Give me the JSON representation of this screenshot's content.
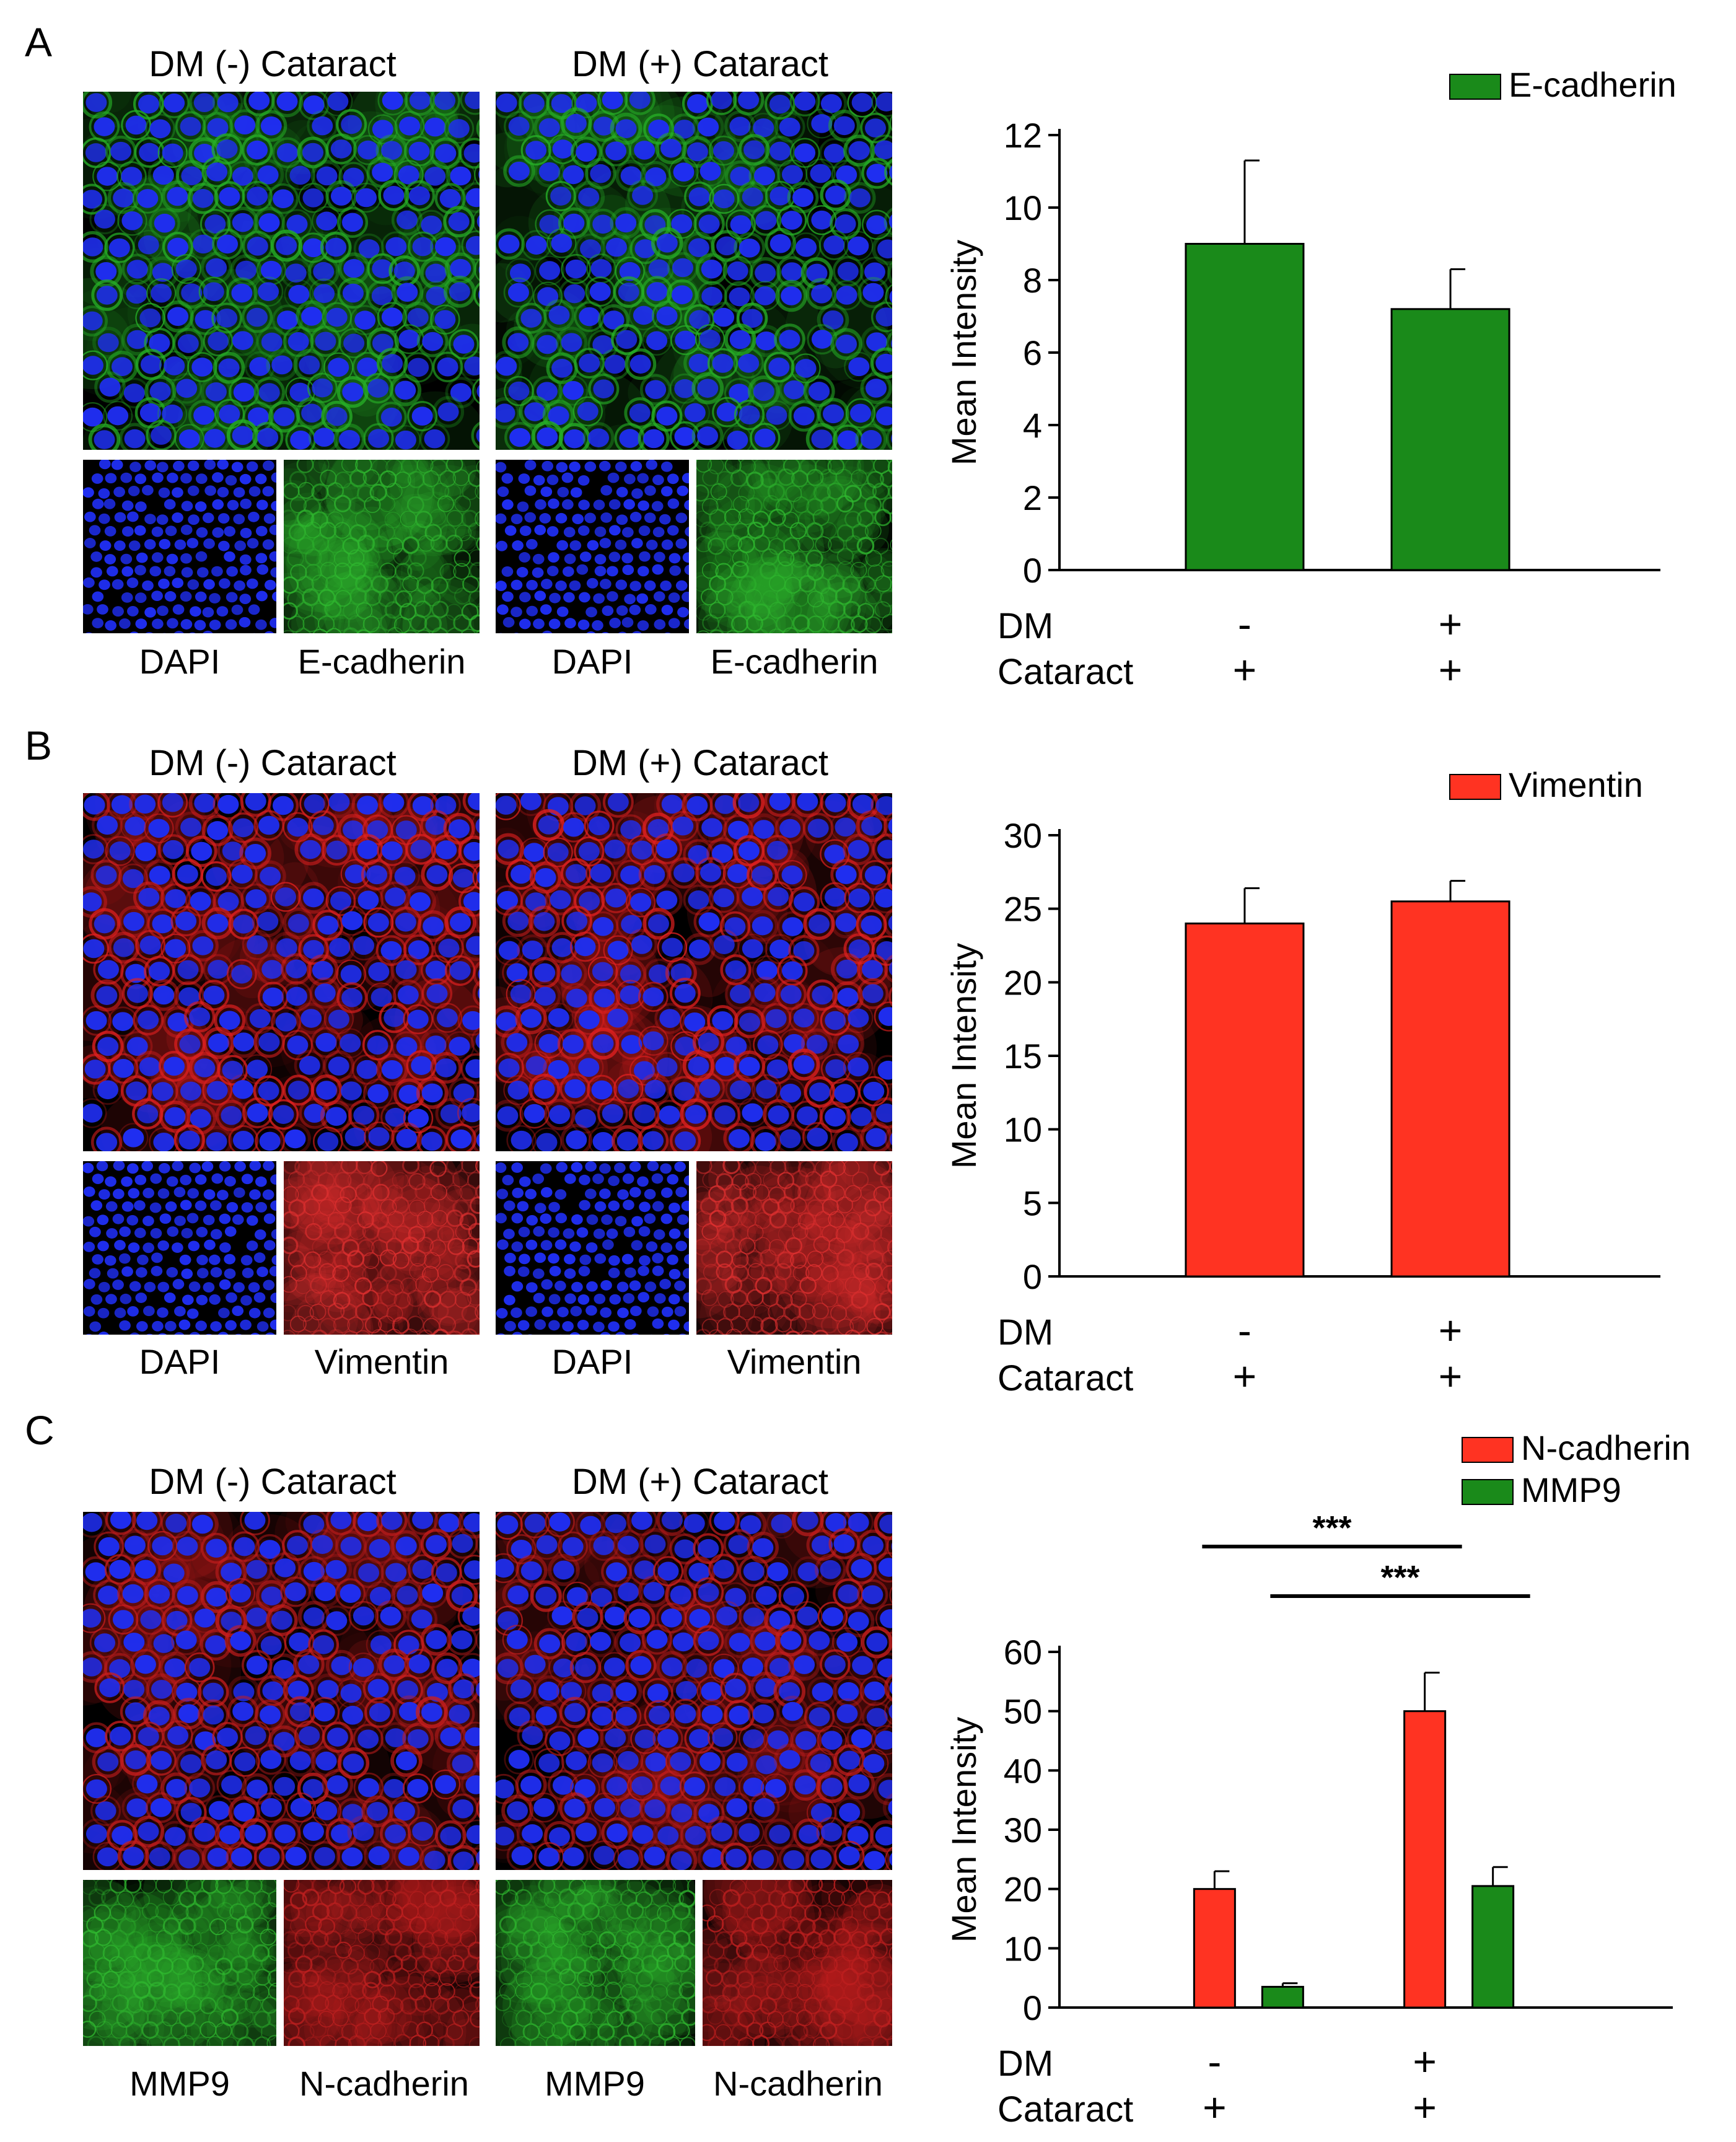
{
  "panels": [
    {
      "letter": "A",
      "conditions": [
        "DM (-) Cataract",
        "DM (+) Cataract"
      ],
      "channel_labels": [
        "DAPI",
        "E-cadherin",
        "DAPI",
        "E-cadherin"
      ],
      "merge_colors": {
        "nuclei": "#1f2ef0",
        "stain": "#27b027"
      },
      "channel_colors": [
        "#1f2ef0",
        "#2fb82f",
        "#1f2ef0",
        "#2fb82f"
      ],
      "chart_data": {
        "type": "bar",
        "categories": [
          "DM - / Cataract +",
          "DM + / Cataract +"
        ],
        "series": [
          {
            "name": "E-cadherin",
            "values": [
              9.0,
              7.2
            ],
            "errors": [
              2.3,
              1.1
            ],
            "color": "#1a8a1a"
          }
        ],
        "ylabel": "Mean Intensity",
        "ylim": [
          0,
          12
        ],
        "yticks": [
          0,
          2,
          4,
          6,
          8,
          10,
          12
        ],
        "row_labels": [
          "DM",
          "Cataract"
        ],
        "row_values": [
          [
            "-",
            "+"
          ],
          [
            "+",
            "+"
          ]
        ],
        "significance": [],
        "legend_placement": "top-right"
      }
    },
    {
      "letter": "B",
      "conditions": [
        "DM (-) Cataract",
        "DM (+) Cataract"
      ],
      "channel_labels": [
        "DAPI",
        "Vimentin",
        "DAPI",
        "Vimentin"
      ],
      "merge_colors": {
        "nuclei": "#1f2ef0",
        "stain": "#e02020"
      },
      "channel_colors": [
        "#1f2ef0",
        "#e03030",
        "#1f2ef0",
        "#e03030"
      ],
      "chart_data": {
        "type": "bar",
        "categories": [
          "DM - / Cataract +",
          "DM + / Cataract +"
        ],
        "series": [
          {
            "name": "Vimentin",
            "values": [
              24.0,
              25.5
            ],
            "errors": [
              2.4,
              1.4
            ],
            "color": "#ff3322"
          }
        ],
        "ylabel": "Mean Intensity",
        "ylim": [
          0,
          30
        ],
        "yticks": [
          0,
          5,
          10,
          15,
          20,
          25,
          30
        ],
        "row_labels": [
          "DM",
          "Cataract"
        ],
        "row_values": [
          [
            "-",
            "+"
          ],
          [
            "+",
            "+"
          ]
        ],
        "significance": [],
        "legend_placement": "top-right"
      }
    },
    {
      "letter": "C",
      "conditions": [
        "DM (-) Cataract",
        "DM (+) Cataract"
      ],
      "channel_labels": [
        "MMP9",
        "N-cadherin",
        "MMP9",
        "N-cadherin"
      ],
      "merge_colors": {
        "nuclei": "#1f2ef0",
        "stain": "#c81e1e"
      },
      "channel_colors": [
        "#2fb82f",
        "#c02020",
        "#2fb82f",
        "#c02020"
      ],
      "chart_data": {
        "type": "bar",
        "categories": [
          "DM - / Cataract +",
          "DM + / Cataract +"
        ],
        "series": [
          {
            "name": "N-cadherin",
            "values": [
              20.0,
              50.0
            ],
            "errors": [
              3.0,
              6.5
            ],
            "color": "#ff3322"
          },
          {
            "name": "MMP9",
            "values": [
              3.5,
              20.5
            ],
            "errors": [
              0.6,
              3.2
            ],
            "color": "#1a8a1a"
          }
        ],
        "ylabel": "Mean Intensity",
        "ylim": [
          0,
          60
        ],
        "yticks": [
          0,
          10,
          20,
          30,
          40,
          50,
          60
        ],
        "row_labels": [
          "DM",
          "Cataract"
        ],
        "row_values": [
          [
            "-",
            "+"
          ],
          [
            "+",
            "+"
          ]
        ],
        "significance": [
          {
            "label": "***",
            "from": [
              0,
              0
            ],
            "to": [
              1,
              0
            ]
          },
          {
            "label": "***",
            "from": [
              0,
              1
            ],
            "to": [
              1,
              1
            ]
          }
        ],
        "legend_placement": "top-right"
      }
    }
  ]
}
